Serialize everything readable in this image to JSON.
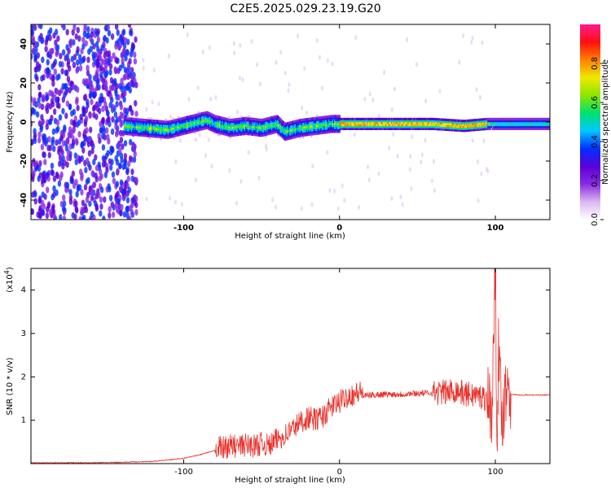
{
  "title": "C2E5.2025.029.23.19.G20",
  "spectrogram": {
    "type": "heatmap",
    "xlabel": "Height of straight line (km)",
    "ylabel": "Frequency (Hz)",
    "xlim": [
      -198,
      135
    ],
    "ylim": [
      -50,
      50
    ],
    "xticks": [
      -100,
      0,
      100
    ],
    "yticks": [
      -40,
      -20,
      0,
      20,
      40
    ],
    "colorbar": {
      "label": "Normalized spectral amplitude",
      "ticks": [
        "0.0",
        "0.2",
        "0.4",
        "0.6",
        "0.8"
      ],
      "colors": [
        "#ffffff",
        "#d8b8f0",
        "#8a2be2",
        "#5a00d8",
        "#0030ff",
        "#00c8ff",
        "#00e070",
        "#8ce600",
        "#f0e800",
        "#ff8000",
        "#ff1010",
        "#ff1a90"
      ]
    },
    "ridge": [
      [
        -138,
        -2
      ],
      [
        -125,
        -3
      ],
      [
        -110,
        -4
      ],
      [
        -95,
        -1
      ],
      [
        -85,
        1
      ],
      [
        -80,
        -1
      ],
      [
        -70,
        -3
      ],
      [
        -60,
        -2
      ],
      [
        -50,
        -3
      ],
      [
        -40,
        -1
      ],
      [
        -35,
        -5
      ],
      [
        -25,
        -3
      ],
      [
        -15,
        -2
      ],
      [
        -5,
        -1
      ],
      [
        10,
        -1
      ],
      [
        40,
        -1
      ],
      [
        60,
        -1
      ],
      [
        80,
        -2
      ],
      [
        95,
        -1
      ],
      [
        100,
        -1
      ],
      [
        135,
        -1
      ]
    ]
  },
  "chart_data": {
    "type": "line",
    "title": "",
    "xlabel": "Height of straight line (km)",
    "ylabel": "SNR (10 * v/v)",
    "y_multiplier": "(x10^4)",
    "y_multiplier_base": "(x10",
    "y_multiplier_exp": "4",
    "y_multiplier_close": ")",
    "xlim": [
      -198,
      135
    ],
    "ylim": [
      0,
      4.5
    ],
    "xticks": [
      -100,
      0,
      100
    ],
    "yticks": [
      1,
      2,
      3,
      4
    ],
    "color": "#e8302a",
    "series": [
      {
        "x": [
          -198,
          -160,
          -140,
          -120,
          -100,
          -90,
          -80,
          -75,
          -70,
          -65,
          -60,
          -55,
          -50,
          -45,
          -40,
          -35,
          -30,
          -25,
          -20,
          -15,
          -10,
          -5,
          0,
          5,
          10,
          15,
          20,
          30,
          40,
          50,
          60,
          70,
          75,
          80,
          85,
          90,
          95,
          98,
          100,
          101,
          102,
          104,
          106,
          108,
          110,
          115,
          120,
          135
        ],
        "y": [
          0.02,
          0.02,
          0.03,
          0.05,
          0.12,
          0.2,
          0.3,
          0.25,
          0.3,
          0.28,
          0.32,
          0.3,
          0.35,
          0.3,
          0.45,
          0.55,
          0.7,
          0.85,
          0.95,
          0.9,
          1.0,
          1.2,
          1.3,
          1.45,
          1.5,
          1.55,
          1.58,
          1.6,
          1.6,
          1.62,
          1.63,
          1.65,
          1.7,
          1.6,
          1.6,
          1.55,
          1.5,
          1.2,
          4.5,
          0.6,
          2.5,
          1.1,
          1.5,
          2.0,
          1.6,
          1.58,
          1.58,
          1.58
        ]
      }
    ]
  }
}
